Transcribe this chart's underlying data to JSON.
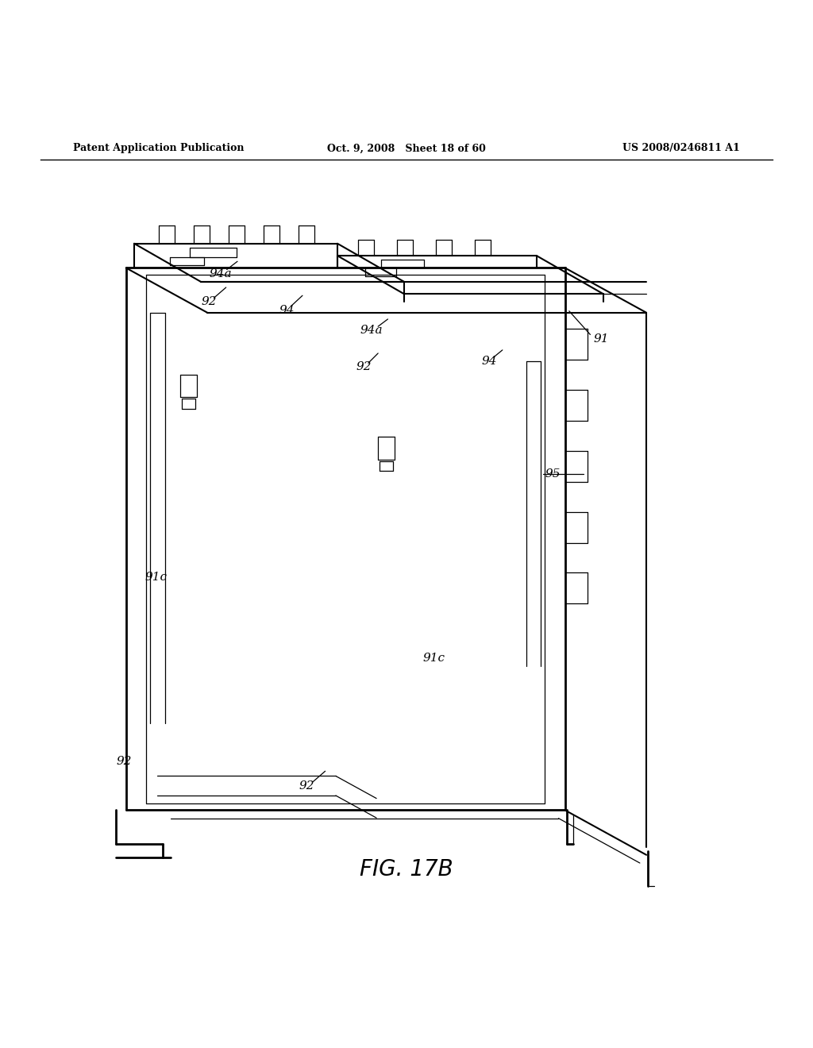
{
  "bg_color": "#ffffff",
  "line_color": "#000000",
  "header_left": "Patent Application Publication",
  "header_mid": "Oct. 9, 2008   Sheet 18 of 60",
  "header_right": "US 2008/0246811 A1",
  "figure_label": "FIG. 17B"
}
